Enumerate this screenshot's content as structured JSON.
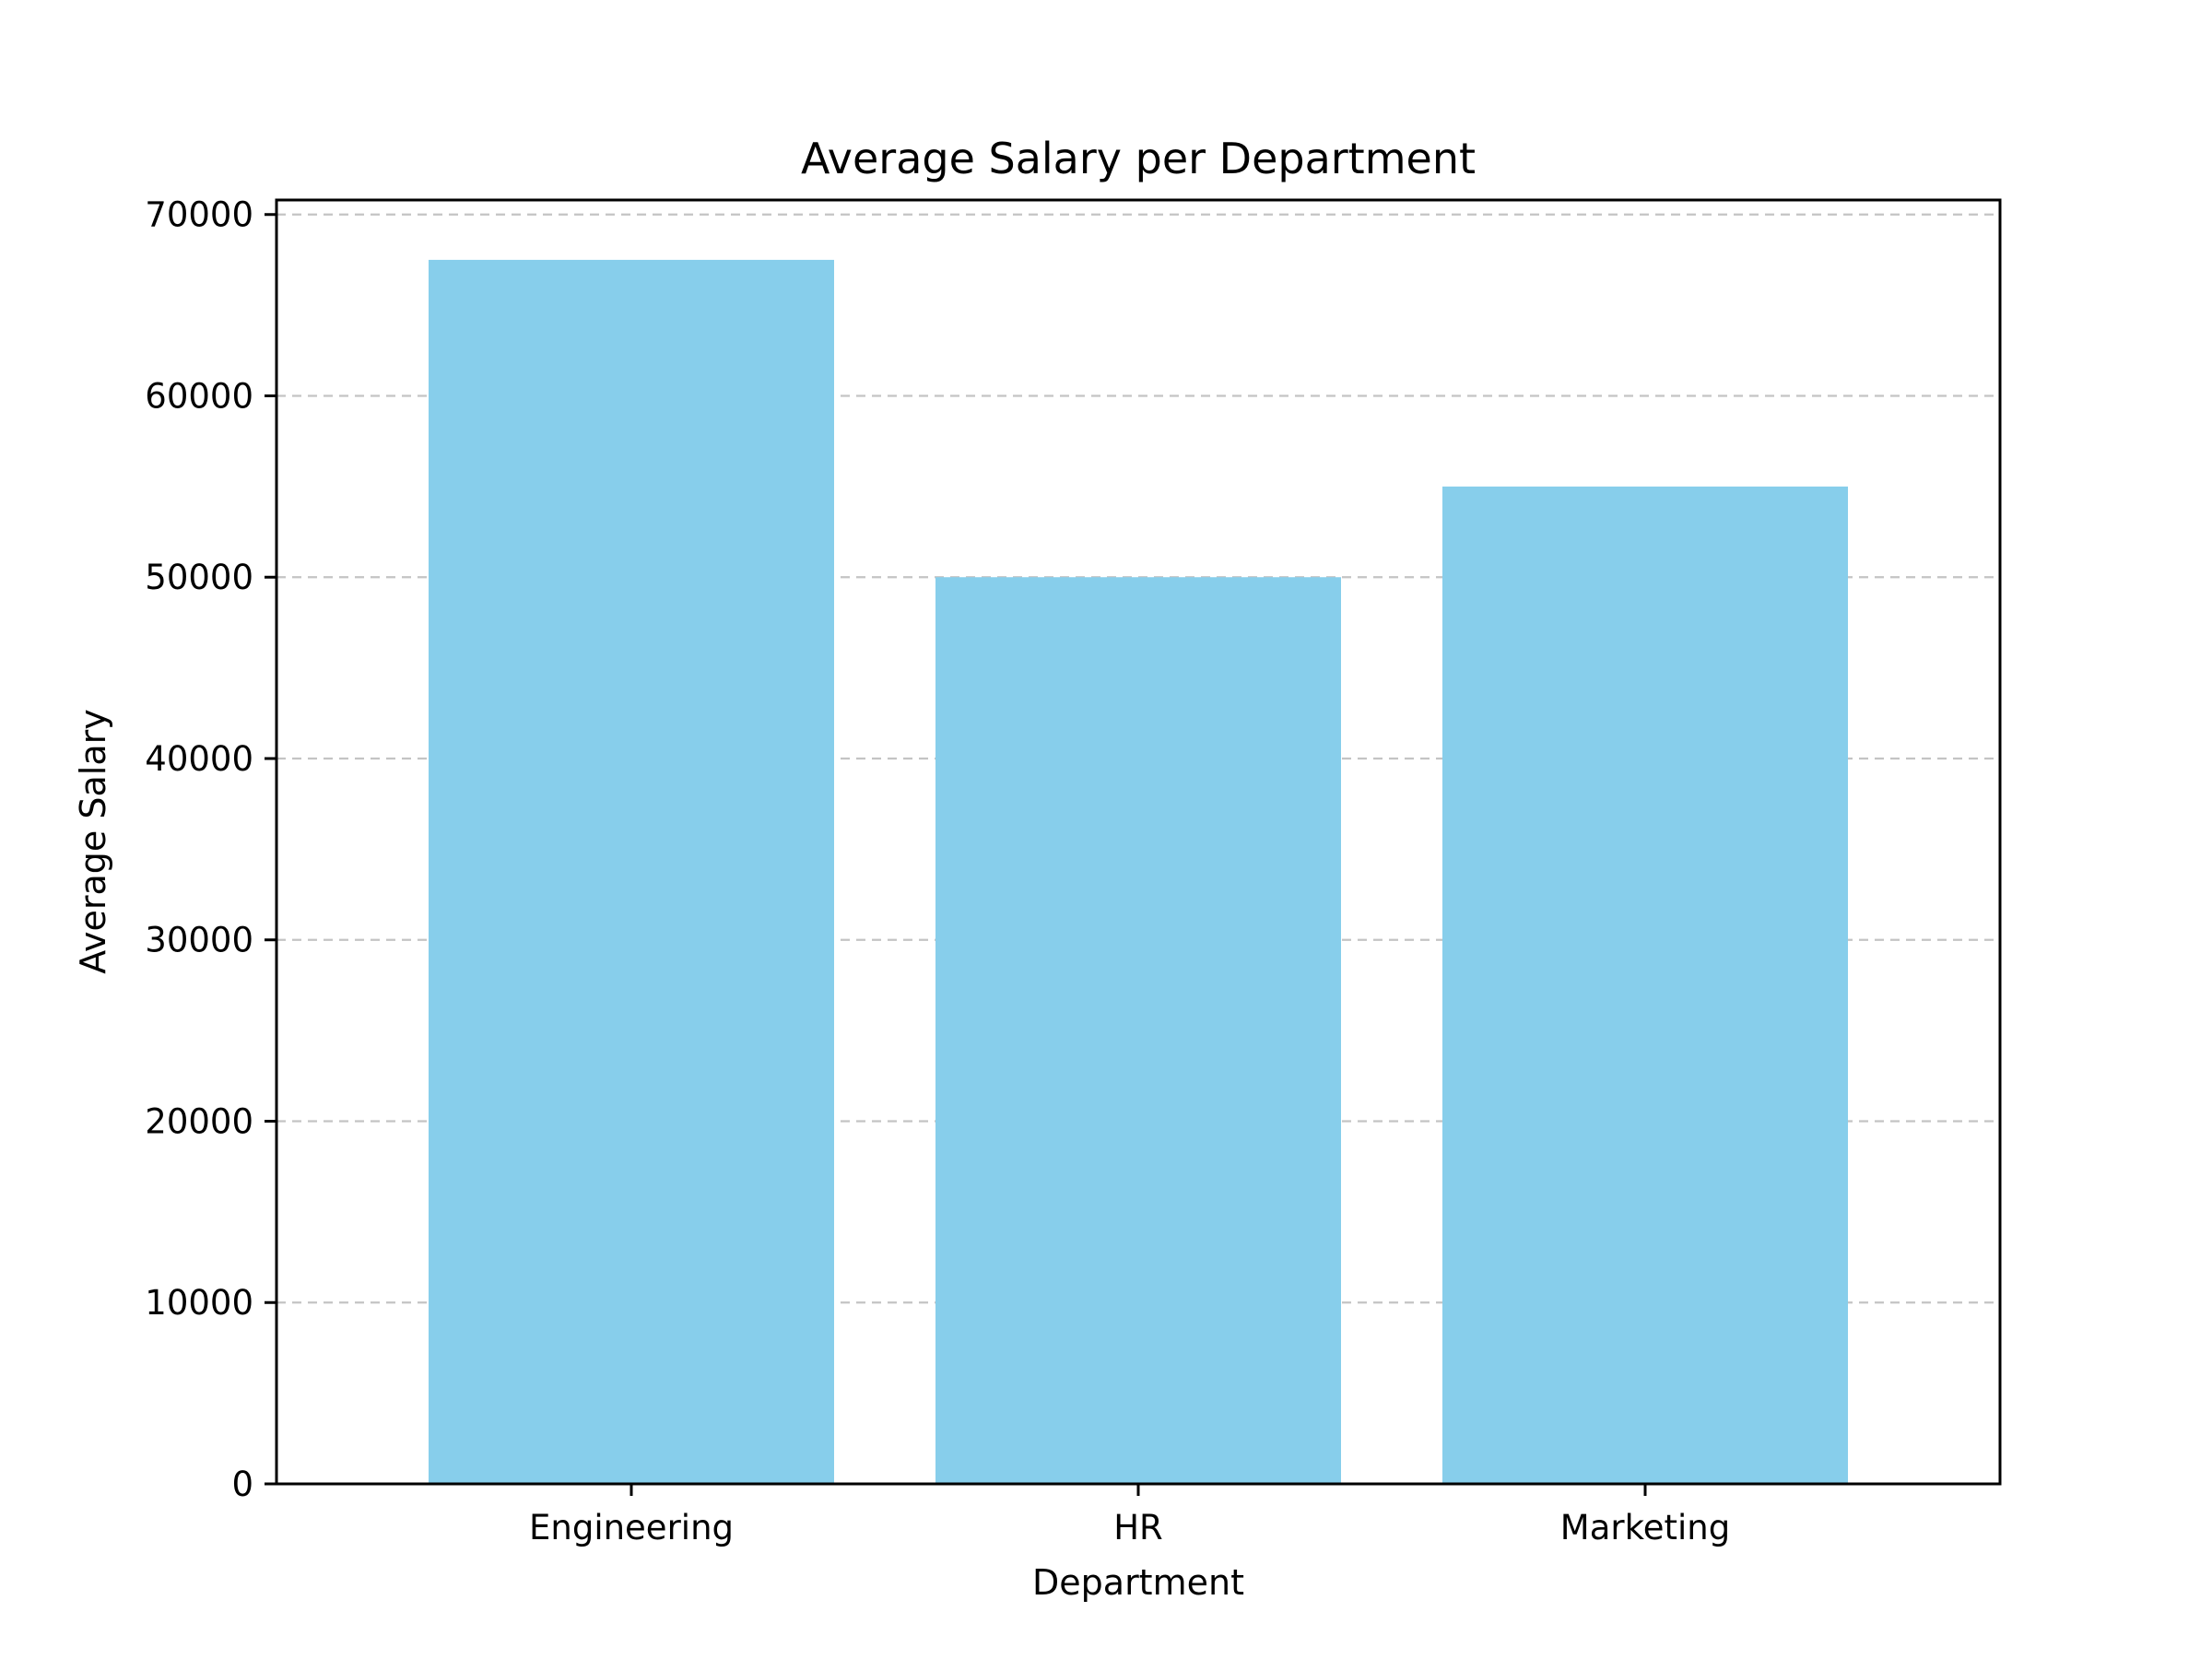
{
  "chart_data": {
    "type": "bar",
    "title": "Average Salary per Department",
    "xlabel": "Department",
    "ylabel": "Average Salary",
    "categories": [
      "Engineering",
      "HR",
      "Marketing"
    ],
    "values": [
      67500,
      50000,
      55000
    ],
    "ylim": [
      0,
      70800
    ],
    "yticks": [
      0,
      10000,
      20000,
      30000,
      40000,
      50000,
      60000,
      70000
    ],
    "grid": "horizontal dashed",
    "bar_color": "#87CEEB",
    "grid_color": "#c4c4c4",
    "axis_color": "#000000"
  }
}
